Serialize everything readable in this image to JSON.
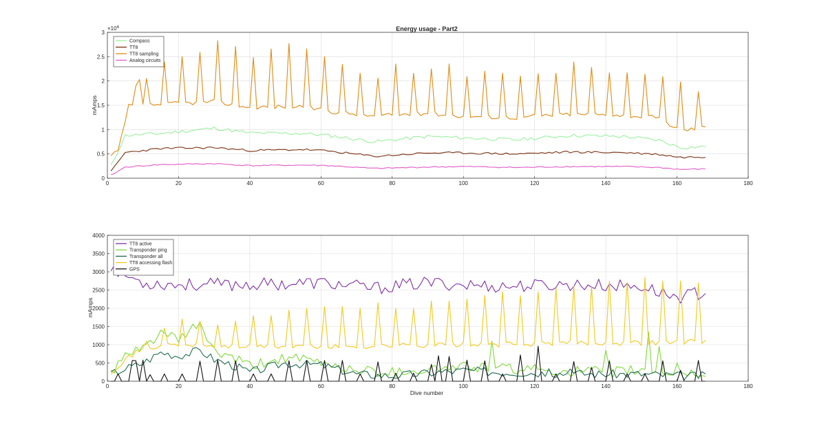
{
  "chart_data": [
    {
      "type": "line",
      "title": "Energy usage - Part2",
      "xlabel": "",
      "ylabel": "mAmps",
      "y_exponent_label": "×10",
      "y_exponent_power": "4",
      "xlim": [
        0,
        180
      ],
      "ylim": [
        0,
        30000
      ],
      "xticks": [
        0,
        20,
        40,
        60,
        80,
        100,
        120,
        140,
        160,
        180
      ],
      "yticks": [
        0,
        5000,
        10000,
        15000,
        20000,
        25000,
        30000
      ],
      "ytick_labels": [
        "0",
        "0.5",
        "1",
        "1.5",
        "2",
        "2.5",
        "3"
      ],
      "grid": true,
      "legend_position": "top-left",
      "x_range": [
        1,
        168
      ],
      "series": [
        {
          "name": "Compass",
          "color": "#99f09c",
          "base": [
            [
              1,
              2500
            ],
            [
              5,
              8800
            ],
            [
              15,
              9200
            ],
            [
              30,
              10300
            ],
            [
              40,
              9300
            ],
            [
              55,
              9200
            ],
            [
              62,
              8800
            ],
            [
              75,
              7500
            ],
            [
              90,
              8600
            ],
            [
              100,
              8300
            ],
            [
              115,
              7900
            ],
            [
              130,
              8800
            ],
            [
              145,
              8600
            ],
            [
              155,
              7800
            ],
            [
              161,
              6300
            ],
            [
              168,
              6500
            ]
          ],
          "noise": 350,
          "spikes": [],
          "spike_min": 0,
          "seed": 11
        },
        {
          "name": "TT8",
          "color": "#7a2f10",
          "base": [
            [
              1,
              1300
            ],
            [
              5,
              5300
            ],
            [
              15,
              6100
            ],
            [
              30,
              6300
            ],
            [
              40,
              5700
            ],
            [
              55,
              5900
            ],
            [
              62,
              5600
            ],
            [
              75,
              4500
            ],
            [
              90,
              5200
            ],
            [
              100,
              5200
            ],
            [
              115,
              5000
            ],
            [
              130,
              5400
            ],
            [
              145,
              5300
            ],
            [
              155,
              4900
            ],
            [
              161,
              4300
            ],
            [
              168,
              4400
            ]
          ],
          "noise": 220,
          "spikes": [],
          "spike_min": 0,
          "seed": 23
        },
        {
          "name": "TT8 sampling",
          "color": "#e08a12",
          "base": [
            [
              1,
              4500
            ],
            [
              3,
              5500
            ],
            [
              6,
              14800
            ],
            [
              15,
              15200
            ],
            [
              30,
              15800
            ],
            [
              40,
              14600
            ],
            [
              55,
              14800
            ],
            [
              62,
              13800
            ],
            [
              75,
              12800
            ],
            [
              90,
              13400
            ],
            [
              100,
              12800
            ],
            [
              115,
              12500
            ],
            [
              130,
              13200
            ],
            [
              145,
              13000
            ],
            [
              155,
              12400
            ],
            [
              161,
              9800
            ],
            [
              168,
              10500
            ]
          ],
          "noise": 450,
          "spikes": [
            [
              8,
              19000
            ],
            [
              9,
              20300
            ],
            [
              11,
              20500
            ],
            [
              16,
              23900
            ],
            [
              21,
              25000
            ],
            [
              26,
              25900
            ],
            [
              31,
              28300
            ],
            [
              36,
              27100
            ],
            [
              41,
              24800
            ],
            [
              46,
              26600
            ],
            [
              51,
              27700
            ],
            [
              56,
              26600
            ],
            [
              61,
              25000
            ],
            [
              66,
              23400
            ],
            [
              71,
              21600
            ],
            [
              76,
              20600
            ],
            [
              81,
              23500
            ],
            [
              86,
              21600
            ],
            [
              91,
              22500
            ],
            [
              96,
              23500
            ],
            [
              101,
              20900
            ],
            [
              106,
              22000
            ],
            [
              111,
              21600
            ],
            [
              116,
              21000
            ],
            [
              121,
              21500
            ],
            [
              126,
              21600
            ],
            [
              131,
              23900
            ],
            [
              136,
              22800
            ],
            [
              141,
              21700
            ],
            [
              146,
              21700
            ],
            [
              151,
              21400
            ],
            [
              156,
              20900
            ],
            [
              161,
              19800
            ],
            [
              166,
              17800
            ]
          ],
          "spike_min": 0,
          "seed": 37
        },
        {
          "name": "Analog circuits",
          "color": "#e05ac8",
          "base": [
            [
              1,
              600
            ],
            [
              5,
              2300
            ],
            [
              15,
              2800
            ],
            [
              30,
              3000
            ],
            [
              40,
              2600
            ],
            [
              55,
              2700
            ],
            [
              62,
              2600
            ],
            [
              75,
              2000
            ],
            [
              90,
              2300
            ],
            [
              100,
              2400
            ],
            [
              115,
              2200
            ],
            [
              130,
              2400
            ],
            [
              145,
              2400
            ],
            [
              155,
              2200
            ],
            [
              161,
              1800
            ],
            [
              168,
              1900
            ]
          ],
          "noise": 120,
          "spikes": [],
          "spike_min": 0,
          "seed": 41
        }
      ]
    },
    {
      "type": "line",
      "title": "",
      "xlabel": "Dive number",
      "ylabel": "mAmps",
      "xlim": [
        0,
        180
      ],
      "ylim": [
        0,
        4000
      ],
      "xticks": [
        0,
        20,
        40,
        60,
        80,
        100,
        120,
        140,
        160,
        180
      ],
      "yticks": [
        0,
        500,
        1000,
        1500,
        2000,
        2500,
        3000,
        3500,
        4000
      ],
      "ytick_labels": [
        "0",
        "500",
        "1000",
        "1500",
        "2000",
        "2500",
        "3000",
        "3500",
        "4000"
      ],
      "grid": true,
      "legend_position": "top-left",
      "x_range": [
        1,
        168
      ],
      "series": [
        {
          "name": "TT8 active",
          "color": "#7e2fa8",
          "base": [
            [
              1,
              3200
            ],
            [
              3,
              3000
            ],
            [
              10,
              2700
            ],
            [
              20,
              2650
            ],
            [
              40,
              2650
            ],
            [
              60,
              2700
            ],
            [
              75,
              2550
            ],
            [
              90,
              2700
            ],
            [
              110,
              2600
            ],
            [
              130,
              2650
            ],
            [
              150,
              2600
            ],
            [
              160,
              2300
            ],
            [
              168,
              2450
            ]
          ],
          "noise": 180,
          "spikes": [],
          "spike_min": 0,
          "seed": 53
        },
        {
          "name": "Transponder ping",
          "color": "#7fd93a",
          "base": [
            [
              1,
              250
            ],
            [
              5,
              650
            ],
            [
              10,
              900
            ],
            [
              15,
              1350
            ],
            [
              20,
              1100
            ],
            [
              26,
              1600
            ],
            [
              30,
              800
            ],
            [
              35,
              650
            ],
            [
              40,
              400
            ],
            [
              50,
              650
            ],
            [
              60,
              500
            ],
            [
              70,
              300
            ],
            [
              80,
              250
            ],
            [
              100,
              400
            ],
            [
              110,
              350
            ],
            [
              140,
              250
            ],
            [
              150,
              300
            ],
            [
              160,
              200
            ],
            [
              168,
              200
            ]
          ],
          "noise": 150,
          "spikes": [
            [
              108,
              1100
            ],
            [
              140,
              850
            ],
            [
              152,
              1350
            ],
            [
              155,
              950
            ],
            [
              160,
              500
            ]
          ],
          "spike_min": 0,
          "seed": 61
        },
        {
          "name": "Transponder all",
          "color": "#1f6b50",
          "base": [
            [
              1,
              200
            ],
            [
              5,
              350
            ],
            [
              10,
              500
            ],
            [
              15,
              800
            ],
            [
              20,
              700
            ],
            [
              26,
              850
            ],
            [
              30,
              600
            ],
            [
              35,
              450
            ],
            [
              40,
              250
            ],
            [
              50,
              500
            ],
            [
              60,
              450
            ],
            [
              70,
              200
            ],
            [
              80,
              150
            ],
            [
              100,
              300
            ],
            [
              110,
              250
            ],
            [
              140,
              200
            ],
            [
              150,
              200
            ],
            [
              160,
              150
            ],
            [
              168,
              150
            ]
          ],
          "noise": 120,
          "spikes": [],
          "spike_min": 0,
          "seed": 67
        },
        {
          "name": "TT8 accessing flash",
          "color": "#f2c81c",
          "base": [
            [
              1,
              250
            ],
            [
              5,
              600
            ],
            [
              10,
              900
            ],
            [
              20,
              1000
            ],
            [
              30,
              950
            ],
            [
              50,
              950
            ],
            [
              70,
              950
            ],
            [
              90,
              1000
            ],
            [
              110,
              1000
            ],
            [
              130,
              1050
            ],
            [
              150,
              1050
            ],
            [
              168,
              1100
            ]
          ],
          "noise": 70,
          "spikes": [
            [
              11,
              1100
            ],
            [
              16,
              1450
            ],
            [
              21,
              1700
            ],
            [
              26,
              1650
            ],
            [
              31,
              1550
            ],
            [
              36,
              1650
            ],
            [
              41,
              1800
            ],
            [
              46,
              1800
            ],
            [
              51,
              1950
            ],
            [
              56,
              2000
            ],
            [
              61,
              2050
            ],
            [
              66,
              2050
            ],
            [
              71,
              2000
            ],
            [
              76,
              2150
            ],
            [
              81,
              2000
            ],
            [
              86,
              2000
            ],
            [
              91,
              2200
            ],
            [
              96,
              2200
            ],
            [
              101,
              2250
            ],
            [
              106,
              2350
            ],
            [
              111,
              2450
            ],
            [
              116,
              2350
            ],
            [
              121,
              2450
            ],
            [
              126,
              2550
            ],
            [
              131,
              2600
            ],
            [
              136,
              2600
            ],
            [
              141,
              2750
            ],
            [
              146,
              2700
            ],
            [
              151,
              2850
            ],
            [
              156,
              2750
            ],
            [
              161,
              2750
            ],
            [
              166,
              2700
            ]
          ],
          "spike_min": 0,
          "seed": 71
        },
        {
          "name": "GPS",
          "color": "#111111",
          "base": [
            [
              1,
              0
            ],
            [
              168,
              0
            ]
          ],
          "noise": 0,
          "spikes": [
            [
              3,
              200
            ],
            [
              7,
              570
            ],
            [
              8,
              560
            ],
            [
              10,
              580
            ],
            [
              12,
              180
            ],
            [
              16,
              200
            ],
            [
              21,
              200
            ],
            [
              26,
              550
            ],
            [
              31,
              580
            ],
            [
              36,
              560
            ],
            [
              41,
              200
            ],
            [
              46,
              200
            ],
            [
              51,
              560
            ],
            [
              56,
              560
            ],
            [
              61,
              570
            ],
            [
              66,
              570
            ],
            [
              71,
              200
            ],
            [
              76,
              530
            ],
            [
              81,
              220
            ],
            [
              86,
              220
            ],
            [
              91,
              460
            ],
            [
              93,
              700
            ],
            [
              96,
              680
            ],
            [
              101,
              580
            ],
            [
              106,
              560
            ],
            [
              111,
              200
            ],
            [
              116,
              720
            ],
            [
              121,
              960
            ],
            [
              126,
              200
            ],
            [
              131,
              540
            ],
            [
              136,
              380
            ],
            [
              141,
              560
            ],
            [
              146,
              200
            ],
            [
              151,
              200
            ],
            [
              156,
              560
            ],
            [
              161,
              300
            ],
            [
              166,
              570
            ]
          ],
          "spike_min": 0,
          "seed": 79
        }
      ]
    }
  ]
}
